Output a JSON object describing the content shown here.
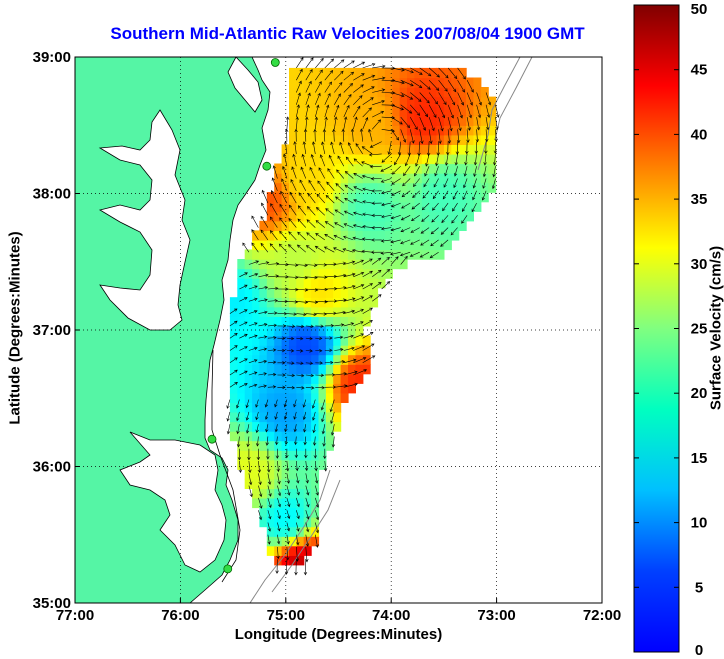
{
  "title": "Southern Mid-Atlantic Raw Velocities 2007/08/04 1900 GMT",
  "xlabel": "Longitude (Degrees:Minutes)",
  "ylabel": "Latitude (Degrees:Minutes)",
  "colorbar_label": "Surface Velocity (cm/s)",
  "x_ticks": [
    "77:00",
    "76:00",
    "75:00",
    "74:00",
    "73:00",
    "72:00"
  ],
  "y_ticks": [
    "39:00",
    "38:00",
    "37:00",
    "36:00",
    "35:00"
  ],
  "colorbar_ticks": [
    "50",
    "45",
    "40",
    "35",
    "30",
    "25",
    "20",
    "15",
    "10",
    "5",
    "0"
  ],
  "colors": {
    "land": "#55f5a5",
    "ocean": "#ffffff",
    "title": "#0000ff",
    "station": "#33dd44",
    "arrows": "#000000",
    "bathymetry": "#888888"
  },
  "map": {
    "lon_range": [
      -77,
      -72
    ],
    "lat_range": [
      35,
      39
    ],
    "grid": true,
    "colorbar_range": [
      0,
      50
    ],
    "colormap": "jet",
    "stations": [
      {
        "lon": -75.1,
        "lat": 38.96
      },
      {
        "lon": -75.18,
        "lat": 38.2
      },
      {
        "lon": -75.7,
        "lat": 36.2
      },
      {
        "lon": -75.55,
        "lat": 35.25
      }
    ],
    "velocity_regions": [
      {
        "lon": -74.2,
        "lat": 38.5,
        "speed": 35
      },
      {
        "lon": -73.7,
        "lat": 38.55,
        "speed": 42
      },
      {
        "lon": -74.8,
        "lat": 38.1,
        "speed": 33
      },
      {
        "lon": -75.2,
        "lat": 37.95,
        "speed": 40
      },
      {
        "lon": -74.2,
        "lat": 37.9,
        "speed": 22
      },
      {
        "lon": -73.5,
        "lat": 38.0,
        "speed": 22
      },
      {
        "lon": -74.9,
        "lat": 37.5,
        "speed": 28
      },
      {
        "lon": -74.7,
        "lat": 37.25,
        "speed": 33
      },
      {
        "lon": -75.5,
        "lat": 37.2,
        "speed": 18
      },
      {
        "lon": -74.8,
        "lat": 36.9,
        "speed": 9
      },
      {
        "lon": -74.3,
        "lat": 36.6,
        "speed": 42
      },
      {
        "lon": -75.0,
        "lat": 36.4,
        "speed": 14
      },
      {
        "lon": -75.35,
        "lat": 35.95,
        "speed": 30
      },
      {
        "lon": -75.0,
        "lat": 35.6,
        "speed": 18
      },
      {
        "lon": -74.85,
        "lat": 35.3,
        "speed": 47
      }
    ]
  }
}
